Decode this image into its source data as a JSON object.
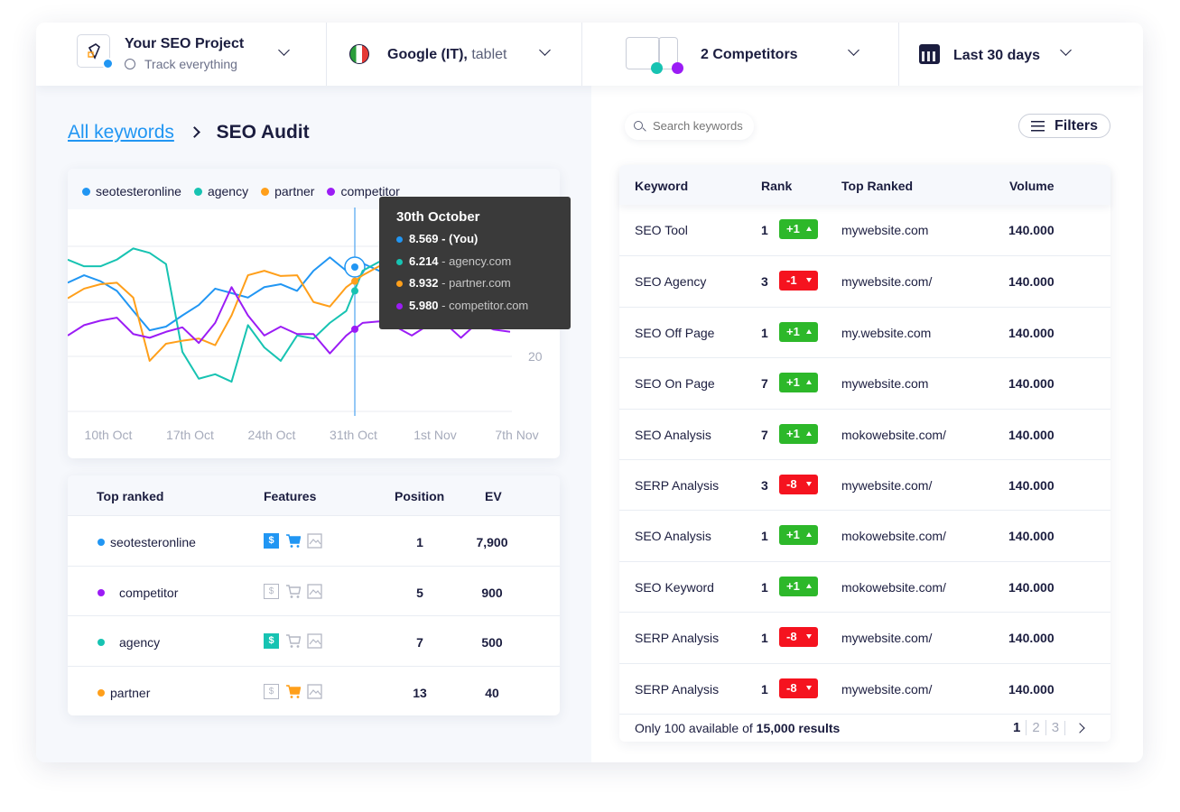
{
  "header": {
    "project": {
      "title": "Your SEO Project",
      "subtitle": "Track everything"
    },
    "engine": {
      "name": "Google (IT),",
      "device": "tablet"
    },
    "competitors": {
      "label": "2 Competitors"
    },
    "date_range": {
      "label": "Last 30 days"
    }
  },
  "breadcrumb": {
    "parent": "All keywords",
    "current": "SEO Audit"
  },
  "legend": [
    {
      "name": "seotesteronline",
      "color": "#2196f3"
    },
    {
      "name": "agency",
      "color": "#17c3b2"
    },
    {
      "name": "partner",
      "color": "#ff9f1a"
    },
    {
      "name": "competitor",
      "color": "#9b1cf5"
    }
  ],
  "tooltip": {
    "title": "30th October",
    "items": [
      {
        "value": "8.569",
        "label": "- (You)",
        "color": "#2196f3"
      },
      {
        "value": "6.214",
        "label": "- agency.com",
        "color": "#17c3b2"
      },
      {
        "value": "8.932",
        "label": "- partner.com",
        "color": "#ff9f1a"
      },
      {
        "value": "5.980",
        "label": "- competitor.com",
        "color": "#9b1cf5"
      }
    ]
  },
  "chart_data": {
    "type": "line",
    "x_tick_labels": [
      "10th Oct",
      "17th Oct",
      "24th Oct",
      "31th Oct",
      "1st Nov",
      "7th Nov"
    ],
    "y_tick_labels": [
      "20"
    ],
    "ylim": [
      0,
      28
    ],
    "y_reversed": true,
    "grid": true,
    "legend_position": "top",
    "series": [
      {
        "name": "seotesteronline",
        "color": "#2196f3",
        "values": [
          10.1,
          9.1,
          9.9,
          11.2,
          13.9,
          16.5,
          16.0,
          14.5,
          13.1,
          10.9,
          11.5,
          12.1,
          10.7,
          10.3,
          11.2,
          8.5,
          6.7,
          8.5,
          7.5,
          8.5,
          7.9,
          7.3,
          8.5,
          7.9,
          7.3,
          8.5,
          7.9,
          8.5
        ]
      },
      {
        "name": "agency",
        "color": "#17c3b2",
        "values": [
          7.0,
          7.9,
          7.9,
          7.0,
          5.5,
          6.1,
          7.6,
          19.4,
          23.0,
          22.4,
          23.4,
          15.8,
          18.8,
          20.6,
          17.2,
          17.6,
          15.5,
          13.9,
          8.5,
          7.3,
          8.5,
          9.7,
          10.9,
          10.3,
          11.5,
          10.9,
          12.1,
          11.5
        ]
      },
      {
        "name": "partner",
        "color": "#ff9f1a",
        "values": [
          12.2,
          10.9,
          10.3,
          10.1,
          12.1,
          20.6,
          18.3,
          17.9,
          17.6,
          18.5,
          14.5,
          9.1,
          8.5,
          9.2,
          9.1,
          12.7,
          13.3,
          10.7,
          9.1,
          7.9,
          7.3,
          8.5,
          7.9,
          9.1,
          8.2,
          8.5,
          7.9,
          8.5
        ]
      },
      {
        "name": "competitor",
        "color": "#9b1cf5",
        "values": [
          17.2,
          15.8,
          15.2,
          14.8,
          17.0,
          17.5,
          16.7,
          16.1,
          18.2,
          15.5,
          10.7,
          14.5,
          17.2,
          16.0,
          17.0,
          17.0,
          19.6,
          17.2,
          15.5,
          15.3,
          16.0,
          17.2,
          15.8,
          15.5,
          17.5,
          15.5,
          16.4,
          16.7
        ]
      }
    ]
  },
  "top_table": {
    "headers": [
      "Top ranked",
      "Features",
      "Position",
      "EV"
    ],
    "rows": [
      {
        "name": "seotesteronline",
        "color": "#2196f3",
        "features": {
          "paid": "#2196f3",
          "shopping": "#2196f3",
          "image": ""
        },
        "position": "1",
        "ev": "7,900"
      },
      {
        "name": "competitor",
        "color": "#9b1cf5",
        "features": {
          "paid": "",
          "shopping": "",
          "image": ""
        },
        "position": "5",
        "ev": "900"
      },
      {
        "name": "agency",
        "color": "#17c3b2",
        "features": {
          "paid": "#17c3b2",
          "shopping": "",
          "image": ""
        },
        "position": "7",
        "ev": "500"
      },
      {
        "name": "partner",
        "color": "#ff9f1a",
        "features": {
          "paid": "",
          "shopping": "#ff9f1a",
          "image": ""
        },
        "position": "13",
        "ev": "40"
      }
    ]
  },
  "search": {
    "placeholder": "Search keywords"
  },
  "filters_label": "Filters",
  "keyword_table": {
    "headers": [
      "Keyword",
      "Rank",
      "Top Ranked",
      "Volume"
    ],
    "rows": [
      {
        "keyword": "SEO Tool",
        "rank": "1",
        "change": "+1",
        "dir": "up",
        "top": "mywebsite.com",
        "volume": "140.000"
      },
      {
        "keyword": "SEO Agency",
        "rank": "3",
        "change": "-1",
        "dir": "down",
        "top": "mywebsite.com/",
        "volume": "140.000"
      },
      {
        "keyword": "SEO Off Page",
        "rank": "1",
        "change": "+1",
        "dir": "up",
        "top": "my.website.com",
        "volume": "140.000"
      },
      {
        "keyword": "SEO On Page",
        "rank": "7",
        "change": "+1",
        "dir": "up",
        "top": "mywebsite.com",
        "volume": "140.000"
      },
      {
        "keyword": "SEO Analysis",
        "rank": "7",
        "change": "+1",
        "dir": "up",
        "top": "mokowebsite.com/",
        "volume": "140.000"
      },
      {
        "keyword": "SERP Analysis",
        "rank": "3",
        "change": "-8",
        "dir": "down",
        "top": "mywebsite.com/",
        "volume": "140.000"
      },
      {
        "keyword": "SEO Analysis",
        "rank": "1",
        "change": "+1",
        "dir": "up",
        "top": "mokowebsite.com/",
        "volume": "140.000"
      },
      {
        "keyword": "SEO Keyword",
        "rank": "1",
        "change": "+1",
        "dir": "up",
        "top": "mokowebsite.com/",
        "volume": "140.000"
      },
      {
        "keyword": "SERP Analysis",
        "rank": "1",
        "change": "-8",
        "dir": "down",
        "top": "mywebsite.com/",
        "volume": "140.000"
      },
      {
        "keyword": "SERP Analysis",
        "rank": "1",
        "change": "-8",
        "dir": "down",
        "top": "mywebsite.com/",
        "volume": "140.000"
      }
    ],
    "footer": {
      "prefix": "Only 100 available of",
      "total": "15,000 results"
    },
    "pagination": {
      "pages": [
        "1",
        "2",
        "3"
      ],
      "current": "1"
    }
  },
  "colors": {
    "up": "#2db82a",
    "down": "#f5131f",
    "accent": "#2196f3",
    "text": "#1b1d3f"
  }
}
